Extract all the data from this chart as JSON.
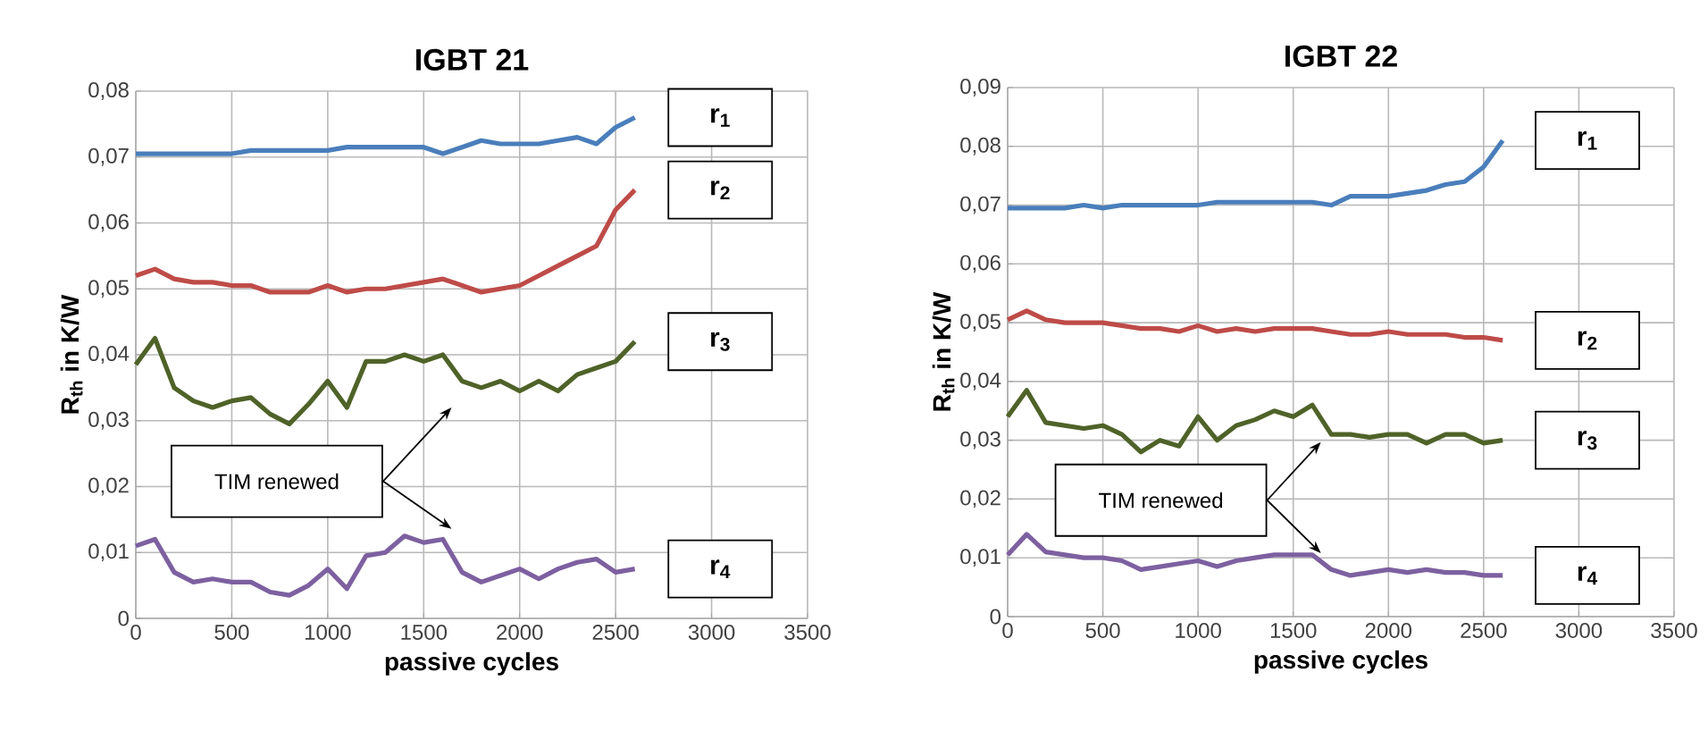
{
  "chart_data": [
    {
      "type": "line",
      "title": "IGBT 21",
      "xlabel": "passive cycles",
      "ylabel": "R$_{th}$ in K/W",
      "annotations": [
        "TIM renewed"
      ],
      "grid": true,
      "x": [
        0,
        100,
        200,
        300,
        400,
        500,
        600,
        700,
        800,
        900,
        1000,
        1100,
        1200,
        1300,
        1400,
        1500,
        1600,
        1700,
        1800,
        1900,
        2000,
        2100,
        2200,
        2300,
        2400,
        2500,
        2600
      ],
      "xlim": [
        0,
        3500
      ],
      "xticks": [
        0,
        500,
        1000,
        1500,
        2000,
        2500,
        3000,
        3500
      ],
      "ylim": [
        0,
        0.08
      ],
      "yticks": [
        0,
        {
          "value": 0.01,
          "label": "0,01"
        },
        {
          "value": 0.02,
          "label": "0,02"
        },
        {
          "value": 0.03,
          "label": "0,03"
        },
        {
          "value": 0.04,
          "label": "0,04"
        },
        {
          "value": 0.05,
          "label": "0,05"
        },
        {
          "value": 0.06,
          "label": "0,06"
        },
        {
          "value": 0.07,
          "label": "0,07"
        },
        {
          "value": 0.08,
          "label": "0,08"
        }
      ],
      "series": [
        {
          "name": "r$_{1}$",
          "color": "#4a7ebb",
          "values": [
            0.0705,
            0.0705,
            0.0705,
            0.0705,
            0.0705,
            0.0705,
            0.071,
            0.071,
            0.071,
            0.071,
            0.071,
            0.0715,
            0.0715,
            0.0715,
            0.0715,
            0.0715,
            0.0705,
            0.0715,
            0.0725,
            0.072,
            0.072,
            0.072,
            0.0725,
            0.073,
            0.072,
            0.0745,
            0.076
          ]
        },
        {
          "name": "r$_{2}$",
          "color": "#be4b48",
          "values": [
            0.052,
            0.053,
            0.0515,
            0.051,
            0.051,
            0.0505,
            0.0505,
            0.0495,
            0.0495,
            0.0495,
            0.0505,
            0.0495,
            0.05,
            0.05,
            0.0505,
            0.051,
            0.0515,
            0.0505,
            0.0495,
            0.05,
            0.0505,
            0.052,
            0.0535,
            0.055,
            0.0565,
            0.062,
            0.065
          ]
        },
        {
          "name": "r$_{3}$",
          "color": "#4f6228",
          "values": [
            0.0385,
            0.0425,
            0.035,
            0.033,
            0.032,
            0.033,
            0.0335,
            0.031,
            0.0295,
            0.0325,
            0.036,
            0.032,
            0.039,
            0.039,
            0.04,
            0.039,
            0.04,
            0.036,
            0.035,
            0.036,
            0.0345,
            0.036,
            0.0345,
            0.037,
            0.038,
            0.039,
            0.042
          ]
        },
        {
          "name": "r$_{4}$",
          "color": "#7d60a0",
          "values": [
            0.011,
            0.012,
            0.007,
            0.0055,
            0.006,
            0.0055,
            0.0055,
            0.004,
            0.0035,
            0.005,
            0.0075,
            0.0045,
            0.0095,
            0.01,
            0.0125,
            0.0115,
            0.012,
            0.007,
            0.0055,
            0.0065,
            0.0075,
            0.006,
            0.0075,
            0.0085,
            0.009,
            0.007,
            0.0075
          ]
        }
      ]
    },
    {
      "type": "line",
      "title": "IGBT 22",
      "xlabel": "passive cycles",
      "ylabel": "R$_{th}$ in K/W",
      "annotations": [
        "TIM renewed"
      ],
      "grid": true,
      "x": [
        0,
        100,
        200,
        300,
        400,
        500,
        600,
        700,
        800,
        900,
        1000,
        1100,
        1200,
        1300,
        1400,
        1500,
        1600,
        1700,
        1800,
        1900,
        2000,
        2100,
        2200,
        2300,
        2400,
        2500,
        2600
      ],
      "xlim": [
        0,
        3500
      ],
      "xticks": [
        0,
        500,
        1000,
        1500,
        2000,
        2500,
        3000,
        3500
      ],
      "ylim": [
        0,
        0.09
      ],
      "yticks": [
        0,
        {
          "value": 0.01,
          "label": "0,01"
        },
        {
          "value": 0.02,
          "label": "0,02"
        },
        {
          "value": 0.03,
          "label": "0,03"
        },
        {
          "value": 0.04,
          "label": "0,04"
        },
        {
          "value": 0.05,
          "label": "0,05"
        },
        {
          "value": 0.06,
          "label": "0,06"
        },
        {
          "value": 0.07,
          "label": "0,07"
        },
        {
          "value": 0.08,
          "label": "0,08"
        },
        {
          "value": 0.09,
          "label": "0,09"
        }
      ],
      "series": [
        {
          "name": "r$_{1}$",
          "color": "#4a7ebb",
          "values": [
            0.0695,
            0.0695,
            0.0695,
            0.0695,
            0.07,
            0.0695,
            0.07,
            0.07,
            0.07,
            0.07,
            0.07,
            0.0705,
            0.0705,
            0.0705,
            0.0705,
            0.0705,
            0.0705,
            0.07,
            0.0715,
            0.0715,
            0.0715,
            0.072,
            0.0725,
            0.0735,
            0.074,
            0.0765,
            0.081
          ]
        },
        {
          "name": "r$_{2}$",
          "color": "#be4b48",
          "values": [
            0.0505,
            0.052,
            0.0505,
            0.05,
            0.05,
            0.05,
            0.0495,
            0.049,
            0.049,
            0.0485,
            0.0495,
            0.0485,
            0.049,
            0.0485,
            0.049,
            0.049,
            0.049,
            0.0485,
            0.048,
            0.048,
            0.0485,
            0.048,
            0.048,
            0.048,
            0.0475,
            0.0475,
            0.047
          ]
        },
        {
          "name": "r$_{3}$",
          "color": "#4f6228",
          "values": [
            0.034,
            0.0385,
            0.033,
            0.0325,
            0.032,
            0.0325,
            0.031,
            0.028,
            0.03,
            0.029,
            0.034,
            0.03,
            0.0325,
            0.0335,
            0.035,
            0.034,
            0.036,
            0.031,
            0.031,
            0.0305,
            0.031,
            0.031,
            0.0295,
            0.031,
            0.031,
            0.0295,
            0.03
          ]
        },
        {
          "name": "r$_{4}$",
          "color": "#7d60a0",
          "values": [
            0.0105,
            0.014,
            0.011,
            0.0105,
            0.01,
            0.01,
            0.0095,
            0.008,
            0.0085,
            0.009,
            0.0095,
            0.0085,
            0.0095,
            0.01,
            0.0105,
            0.0105,
            0.0105,
            0.008,
            0.007,
            0.0075,
            0.008,
            0.0075,
            0.008,
            0.0075,
            0.0075,
            0.007,
            0.007
          ]
        }
      ]
    }
  ]
}
